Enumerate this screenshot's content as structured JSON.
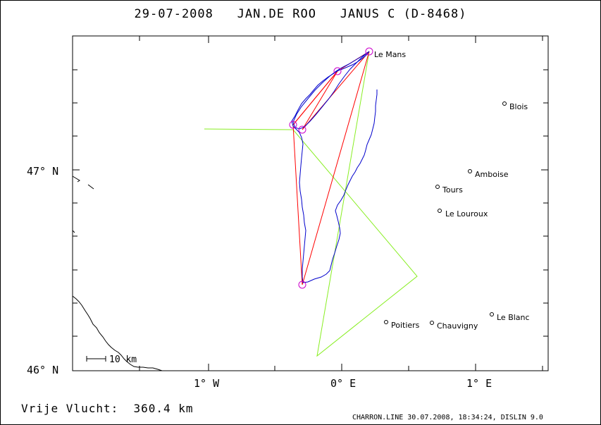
{
  "header": {
    "date": "29-07-2008",
    "pilot": "JAN.DE ROO",
    "glider": "JANUS C (D-8468)"
  },
  "summary": {
    "label": "Vrije Vlucht:",
    "distance": "360.4 km"
  },
  "footer": {
    "text": "CHARRON.LINE 30.07.2008, 18:34:24, DISLIN 9.0"
  },
  "axes": {
    "lat_labels": [
      "47° N",
      "46° N"
    ],
    "lon_labels": [
      "1° W",
      "0° E",
      "1° E"
    ]
  },
  "scale_bar": {
    "label": "10 km"
  },
  "towns": [
    "Le Mans",
    "Blois",
    "Amboise",
    "Tours",
    "Le Louroux",
    "Poitiers",
    "Chauvigny",
    "Le Blanc"
  ],
  "colors": {
    "track": "#0000cc",
    "task": "#ff0000",
    "triangle": "#88ee22",
    "turnpoint": "#cc00cc",
    "coast": "#000000"
  }
}
